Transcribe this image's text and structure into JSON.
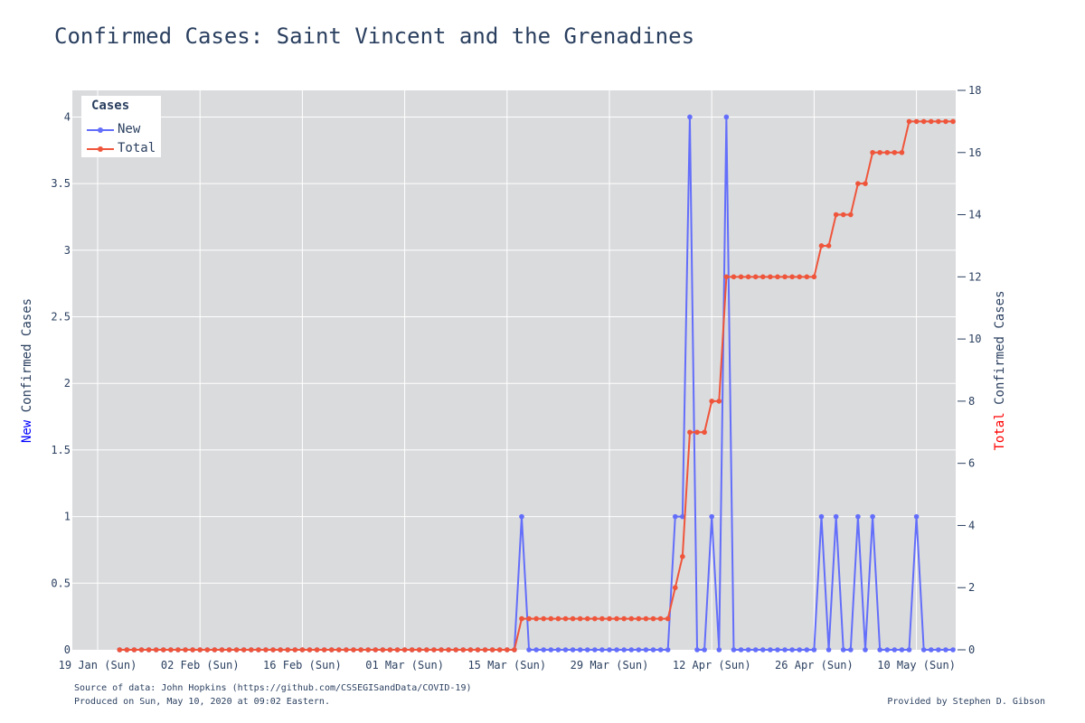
{
  "title": "Confirmed Cases: Saint Vincent and the Grenadines",
  "footer": {
    "source": "Source of data: John Hopkins (https://github.com/CSSEGISandData/COVID-19)",
    "produced": "Produced on Sun, May 10, 2020 at 09:02 Eastern.",
    "credit": "Provided by Stephen D. Gibson"
  },
  "legend": {
    "title": "Cases",
    "items": [
      "New",
      "Total"
    ]
  },
  "colors": {
    "new": "#636efa",
    "total": "#ef553b",
    "plot_bg": "#dadbdd",
    "grid": "#ffffff",
    "text": "#2a3f5f",
    "ylabel_new": "#0000ff",
    "ylabel_total": "#ff0000"
  },
  "chart_data": {
    "type": "line",
    "title": "Confirmed Cases: Saint Vincent and the Grenadines",
    "x_start": "2020-01-22",
    "x_ticks": [
      "19 Jan (Sun)",
      "02 Feb (Sun)",
      "16 Feb (Sun)",
      "01 Mar (Sun)",
      "15 Mar (Sun)",
      "29 Mar (Sun)",
      "12 Apr (Sun)",
      "26 Apr (Sun)",
      "10 May (Sun)"
    ],
    "y_left": {
      "label_prefix": "New",
      "label_rest": " Confirmed Cases",
      "range": [
        0,
        4.2
      ],
      "ticks": [
        "0",
        "0.5",
        "1",
        "1.5",
        "2",
        "2.5",
        "3",
        "3.5",
        "4"
      ]
    },
    "y_right": {
      "label_prefix": "Total",
      "label_rest": " Confirmed Cases",
      "range": [
        0,
        18
      ],
      "ticks": [
        "0",
        "2",
        "4",
        "6",
        "8",
        "10",
        "12",
        "14",
        "16",
        "18"
      ]
    },
    "legend_position": "top-left",
    "series": [
      {
        "name": "New",
        "axis": "left",
        "values": [
          0,
          0,
          0,
          0,
          0,
          0,
          0,
          0,
          0,
          0,
          0,
          0,
          0,
          0,
          0,
          0,
          0,
          0,
          0,
          0,
          0,
          0,
          0,
          0,
          0,
          0,
          0,
          0,
          0,
          0,
          0,
          0,
          0,
          0,
          0,
          0,
          0,
          0,
          0,
          0,
          0,
          0,
          0,
          0,
          0,
          0,
          0,
          0,
          0,
          0,
          0,
          0,
          0,
          0,
          0,
          1,
          0,
          0,
          0,
          0,
          0,
          0,
          0,
          0,
          0,
          0,
          0,
          0,
          0,
          0,
          0,
          0,
          0,
          0,
          0,
          0,
          1,
          1,
          4,
          0,
          0,
          1,
          0,
          4,
          0,
          0,
          0,
          0,
          0,
          0,
          0,
          0,
          0,
          0,
          0,
          0,
          1,
          0,
          1,
          0,
          0,
          1,
          0,
          1,
          0,
          0,
          0,
          0,
          0,
          1,
          0,
          0,
          0,
          0,
          0
        ]
      },
      {
        "name": "Total",
        "axis": "right",
        "values": [
          0,
          0,
          0,
          0,
          0,
          0,
          0,
          0,
          0,
          0,
          0,
          0,
          0,
          0,
          0,
          0,
          0,
          0,
          0,
          0,
          0,
          0,
          0,
          0,
          0,
          0,
          0,
          0,
          0,
          0,
          0,
          0,
          0,
          0,
          0,
          0,
          0,
          0,
          0,
          0,
          0,
          0,
          0,
          0,
          0,
          0,
          0,
          0,
          0,
          0,
          0,
          0,
          0,
          0,
          0,
          1,
          1,
          1,
          1,
          1,
          1,
          1,
          1,
          1,
          1,
          1,
          1,
          1,
          1,
          1,
          1,
          1,
          1,
          1,
          1,
          1,
          2,
          3,
          7,
          7,
          7,
          8,
          8,
          12,
          12,
          12,
          12,
          12,
          12,
          12,
          12,
          12,
          12,
          12,
          12,
          12,
          13,
          13,
          14,
          14,
          14,
          15,
          15,
          16,
          16,
          16,
          16,
          16,
          17,
          17,
          17,
          17,
          17,
          17,
          17
        ]
      }
    ]
  }
}
